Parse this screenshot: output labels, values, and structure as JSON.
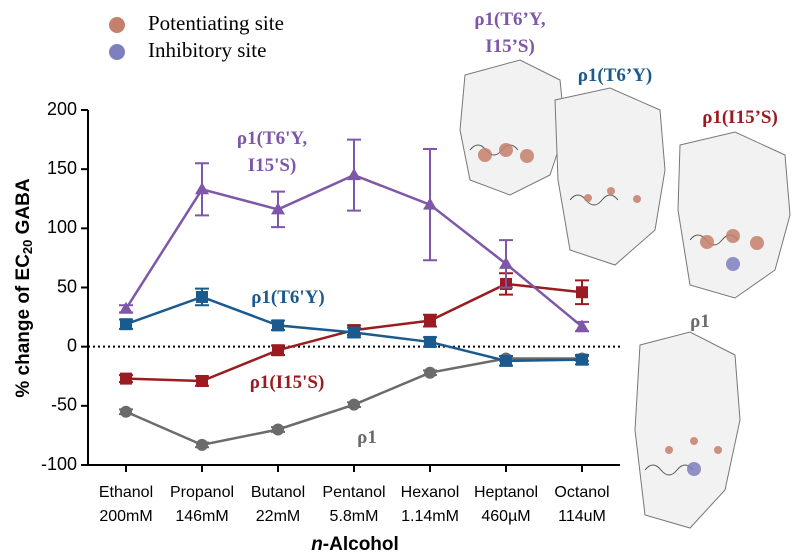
{
  "chart_data": {
    "type": "line",
    "ylabel": "% change of EC",
    "ylabel_sub": "20",
    "ylabel_suffix": " GABA",
    "xlabel_prefix": "n",
    "xlabel": "-Alcohol",
    "categories": [
      "Ethanol",
      "Propanol",
      "Butanol",
      "Pentanol",
      "Hexanol",
      "Heptanol",
      "Octanol"
    ],
    "concentrations": [
      "200mM",
      "146mM",
      "22mM",
      "5.8mM",
      "1.14mM",
      "460µM",
      "114uM"
    ],
    "ylim": [
      -100,
      200
    ],
    "yticks": [
      -100,
      -50,
      0,
      50,
      100,
      150,
      200
    ],
    "zero_line": true,
    "series": [
      {
        "name": "ρ1(T6'Y, I15'S)",
        "color": "#7e57a8",
        "marker": "triangle",
        "values": [
          32,
          133,
          116,
          145,
          120,
          70,
          17
        ],
        "errors": [
          3,
          22,
          15,
          30,
          47,
          20,
          4
        ]
      },
      {
        "name": "ρ1(T6'Y)",
        "color": "#1b5a8e",
        "marker": "square",
        "values": [
          19,
          42,
          18,
          12,
          4,
          -12,
          -11
        ],
        "errors": [
          4,
          7,
          4,
          4,
          4,
          4,
          4
        ]
      },
      {
        "name": "ρ1(I15'S)",
        "color": "#9a1c20",
        "marker": "square",
        "values": [
          -27,
          -29,
          -3,
          14,
          22,
          53,
          46
        ],
        "errors": [
          3,
          4,
          4,
          4,
          5,
          9,
          10
        ]
      },
      {
        "name": "ρ1",
        "color": "#6b6b6b",
        "marker": "circle",
        "values": [
          -55,
          -83,
          -70,
          -49,
          -22,
          -10,
          -10
        ],
        "errors": [
          2,
          2,
          2,
          2,
          2,
          2,
          2
        ]
      }
    ]
  },
  "site_legend": [
    {
      "name": "Potentiating site",
      "color": "#c5806b"
    },
    {
      "name": "Inhibitory site",
      "color": "#7f7fc0"
    }
  ],
  "structures": [
    {
      "label": "ρ1(T6’Y, I15’S)",
      "color": "#7e57a8"
    },
    {
      "label": "ρ1(T6’Y)",
      "color": "#1b5a8e"
    },
    {
      "label": "ρ1(I15’S)",
      "color": "#9a1c20"
    },
    {
      "label": "ρ1",
      "color": "#6b6b6b"
    }
  ]
}
